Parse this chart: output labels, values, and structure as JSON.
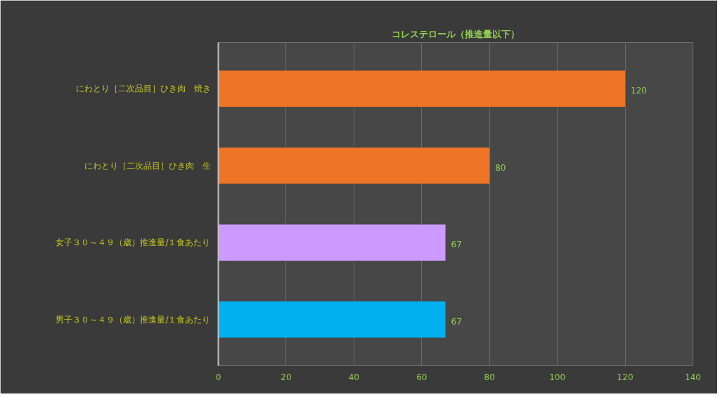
{
  "chart_data": {
    "type": "bar",
    "orientation": "horizontal",
    "title": "コレステロール（推進量以下）",
    "categories": [
      "にわとり［二次品目］ひき肉　焼き",
      "にわとり［二次品目］ひき肉　生",
      "女子３０～４９（歳）推進量/１食あたり",
      "男子３０～４９（歳）推進量/１食あたり"
    ],
    "values": [
      120,
      80,
      67,
      67
    ],
    "colors": [
      "#ee7426",
      "#ee7426",
      "#cc99ff",
      "#00b0f0"
    ],
    "xlim": [
      0,
      140
    ],
    "xticks": [
      0,
      20,
      40,
      60,
      80,
      100,
      120,
      140
    ],
    "grid": "x",
    "data_labels": true
  }
}
